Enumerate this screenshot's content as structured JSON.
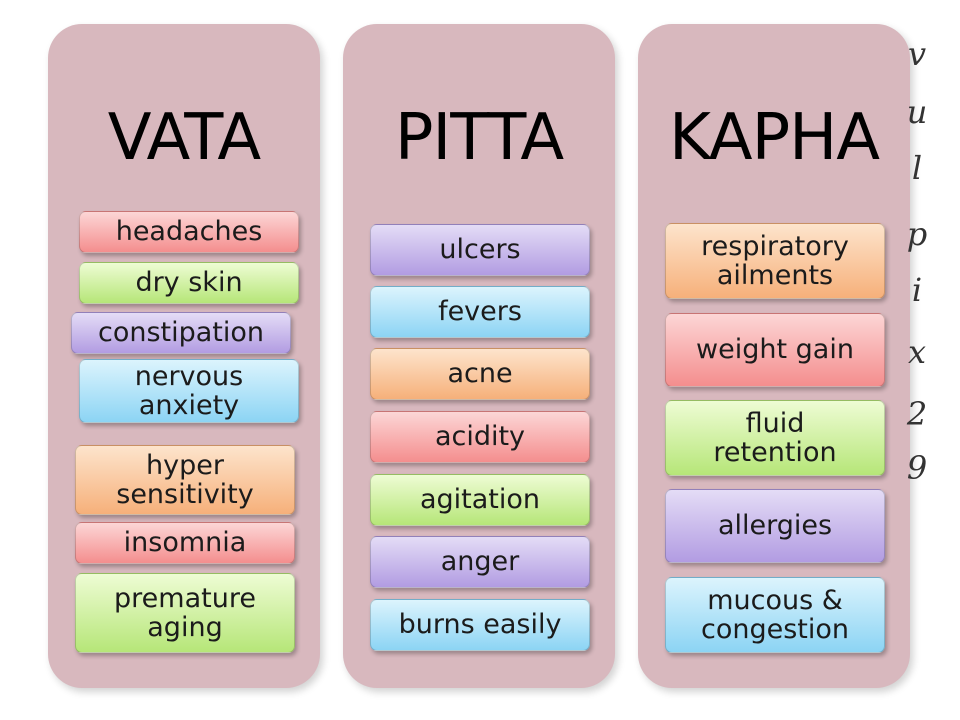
{
  "columns": [
    {
      "title": "VATA",
      "items": [
        {
          "label": "headaches",
          "color": "red"
        },
        {
          "label": "dry skin",
          "color": "green"
        },
        {
          "label": "constipation",
          "color": "purple"
        },
        {
          "label": "nervous\nanxiety",
          "color": "blue"
        },
        {
          "label": "hyper\nsensitivity",
          "color": "orange"
        },
        {
          "label": "insomnia",
          "color": "red"
        },
        {
          "label": "premature\naging",
          "color": "green"
        }
      ]
    },
    {
      "title": "PITTA",
      "items": [
        {
          "label": "ulcers",
          "color": "purple"
        },
        {
          "label": "fevers",
          "color": "blue"
        },
        {
          "label": "acne",
          "color": "orange"
        },
        {
          "label": "acidity",
          "color": "red"
        },
        {
          "label": "agitation",
          "color": "green"
        },
        {
          "label": "anger",
          "color": "purple"
        },
        {
          "label": "burns easily",
          "color": "blue"
        }
      ]
    },
    {
      "title": "KAPHA",
      "items": [
        {
          "label": "respiratory\nailments",
          "color": "orange"
        },
        {
          "label": "weight gain",
          "color": "red"
        },
        {
          "label": "fluid\nretention",
          "color": "green"
        },
        {
          "label": "allergies",
          "color": "purple"
        },
        {
          "label": "mucous &\ncongestion",
          "color": "blue"
        }
      ]
    }
  ],
  "side_text": [
    "v",
    "u",
    "l",
    "p",
    "i",
    "x",
    "2",
    "9"
  ]
}
